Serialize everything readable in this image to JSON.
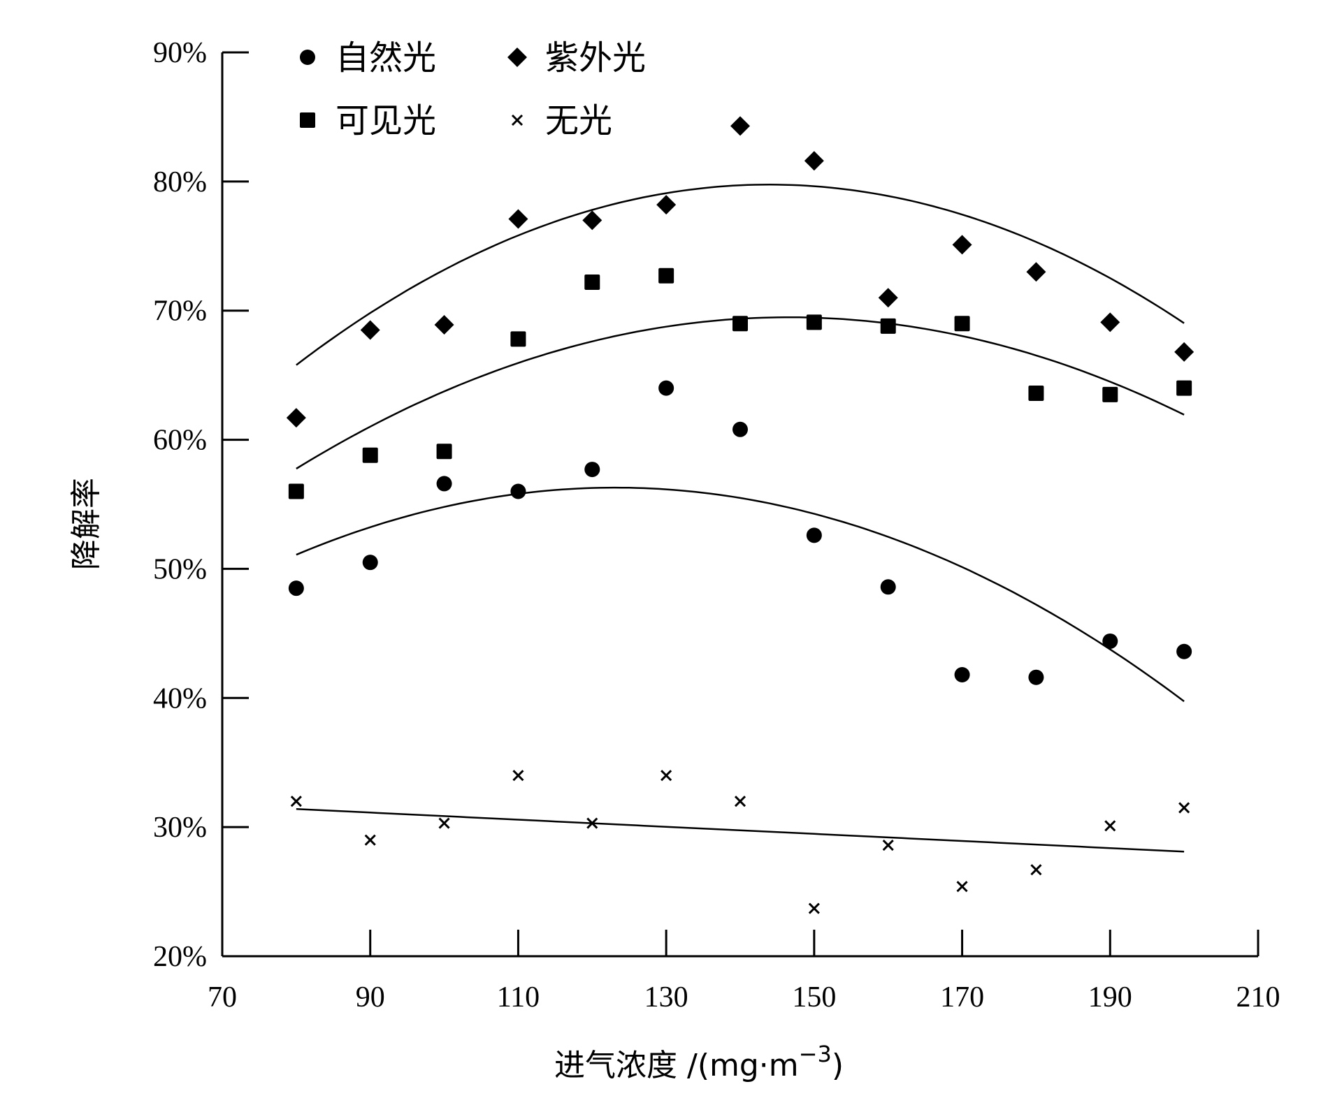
{
  "chart_data": {
    "type": "scatter",
    "title": "",
    "xlabel": "进气浓度 /(mg·m",
    "xlabel_sup": "−3",
    "xlabel_close": ")",
    "ylabel": "降解率",
    "xlim": [
      70,
      210
    ],
    "ylim": [
      20,
      90
    ],
    "x_ticks": [
      70,
      90,
      110,
      130,
      150,
      170,
      190,
      210
    ],
    "y_ticks": [
      20,
      30,
      40,
      50,
      60,
      70,
      80,
      90
    ],
    "y_tick_suffix": "%",
    "x": [
      80,
      90,
      100,
      110,
      120,
      130,
      140,
      150,
      160,
      170,
      180,
      190,
      200
    ],
    "series": [
      {
        "name": "自然光",
        "marker": "circle",
        "values": [
          48.5,
          50.5,
          56.6,
          56.0,
          57.7,
          64.0,
          60.8,
          52.6,
          48.6,
          41.8,
          41.6,
          44.4,
          43.6
        ],
        "fit": {
          "type": "quadratic",
          "coef": [
            13.895,
            0.68885,
            -0.0027981
          ],
          "x_range": [
            80,
            200
          ]
        }
      },
      {
        "name": "紫外光",
        "marker": "diamond",
        "values": [
          61.7,
          68.5,
          68.9,
          77.1,
          77.0,
          78.2,
          84.3,
          81.6,
          71.0,
          75.1,
          73.0,
          69.1,
          66.8
        ],
        "fit": {
          "type": "quadratic",
          "coef": [
            8.96,
            0.98367,
            -0.0034167
          ],
          "x_range": [
            80,
            200
          ]
        }
      },
      {
        "name": "可见光",
        "marker": "square",
        "values": [
          56.0,
          58.8,
          59.1,
          67.8,
          72.2,
          72.7,
          69.0,
          69.1,
          68.8,
          69.0,
          63.6,
          63.5,
          64.0
        ],
        "fit": {
          "type": "quadratic",
          "coef": [
            12.64,
            0.77563,
            -0.0026458
          ],
          "x_range": [
            80,
            200
          ]
        }
      },
      {
        "name": "无光",
        "marker": "x",
        "values": [
          32.0,
          29.0,
          30.3,
          34.0,
          30.3,
          34.0,
          32.0,
          23.7,
          28.6,
          25.4,
          26.7,
          30.1,
          31.5
        ],
        "fit": {
          "type": "linear",
          "coef": [
            33.6,
            -0.0275
          ],
          "x_range": [
            80,
            200
          ]
        }
      }
    ],
    "legend": {
      "placement": "top-left",
      "columns": 2,
      "order": [
        "自然光",
        "紫外光",
        "可见光",
        "无光"
      ]
    }
  }
}
